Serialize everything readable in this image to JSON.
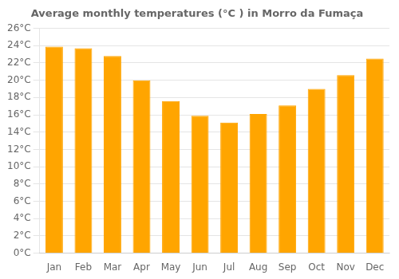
{
  "chart_data": {
    "type": "bar",
    "title": "Average monthly temperatures (°C ) in Morro da Fumaça",
    "categories": [
      "Jan",
      "Feb",
      "Mar",
      "Apr",
      "May",
      "Jun",
      "Jul",
      "Aug",
      "Sep",
      "Oct",
      "Nov",
      "Dec"
    ],
    "values": [
      23.9,
      23.7,
      22.8,
      20.0,
      17.6,
      15.9,
      15.1,
      16.1,
      17.1,
      19.0,
      20.6,
      22.5
    ],
    "color": "#FFA500",
    "ylim": [
      0,
      26
    ],
    "yticks": [
      {
        "value": 0,
        "label": "0°C"
      },
      {
        "value": 2,
        "label": "2°C"
      },
      {
        "value": 4,
        "label": "4°C"
      },
      {
        "value": 6,
        "label": "6°C"
      },
      {
        "value": 8,
        "label": "8°C"
      },
      {
        "value": 10,
        "label": "10°C"
      },
      {
        "value": 12,
        "label": "12°C"
      },
      {
        "value": 14,
        "label": "14°C"
      },
      {
        "value": 16,
        "label": "16°C"
      },
      {
        "value": 18,
        "label": "18°C"
      },
      {
        "value": 20,
        "label": "20°C"
      },
      {
        "value": 22,
        "label": "22°C"
      },
      {
        "value": 24,
        "label": "24°C"
      },
      {
        "value": 26,
        "label": "26°C"
      }
    ],
    "grid": true
  }
}
